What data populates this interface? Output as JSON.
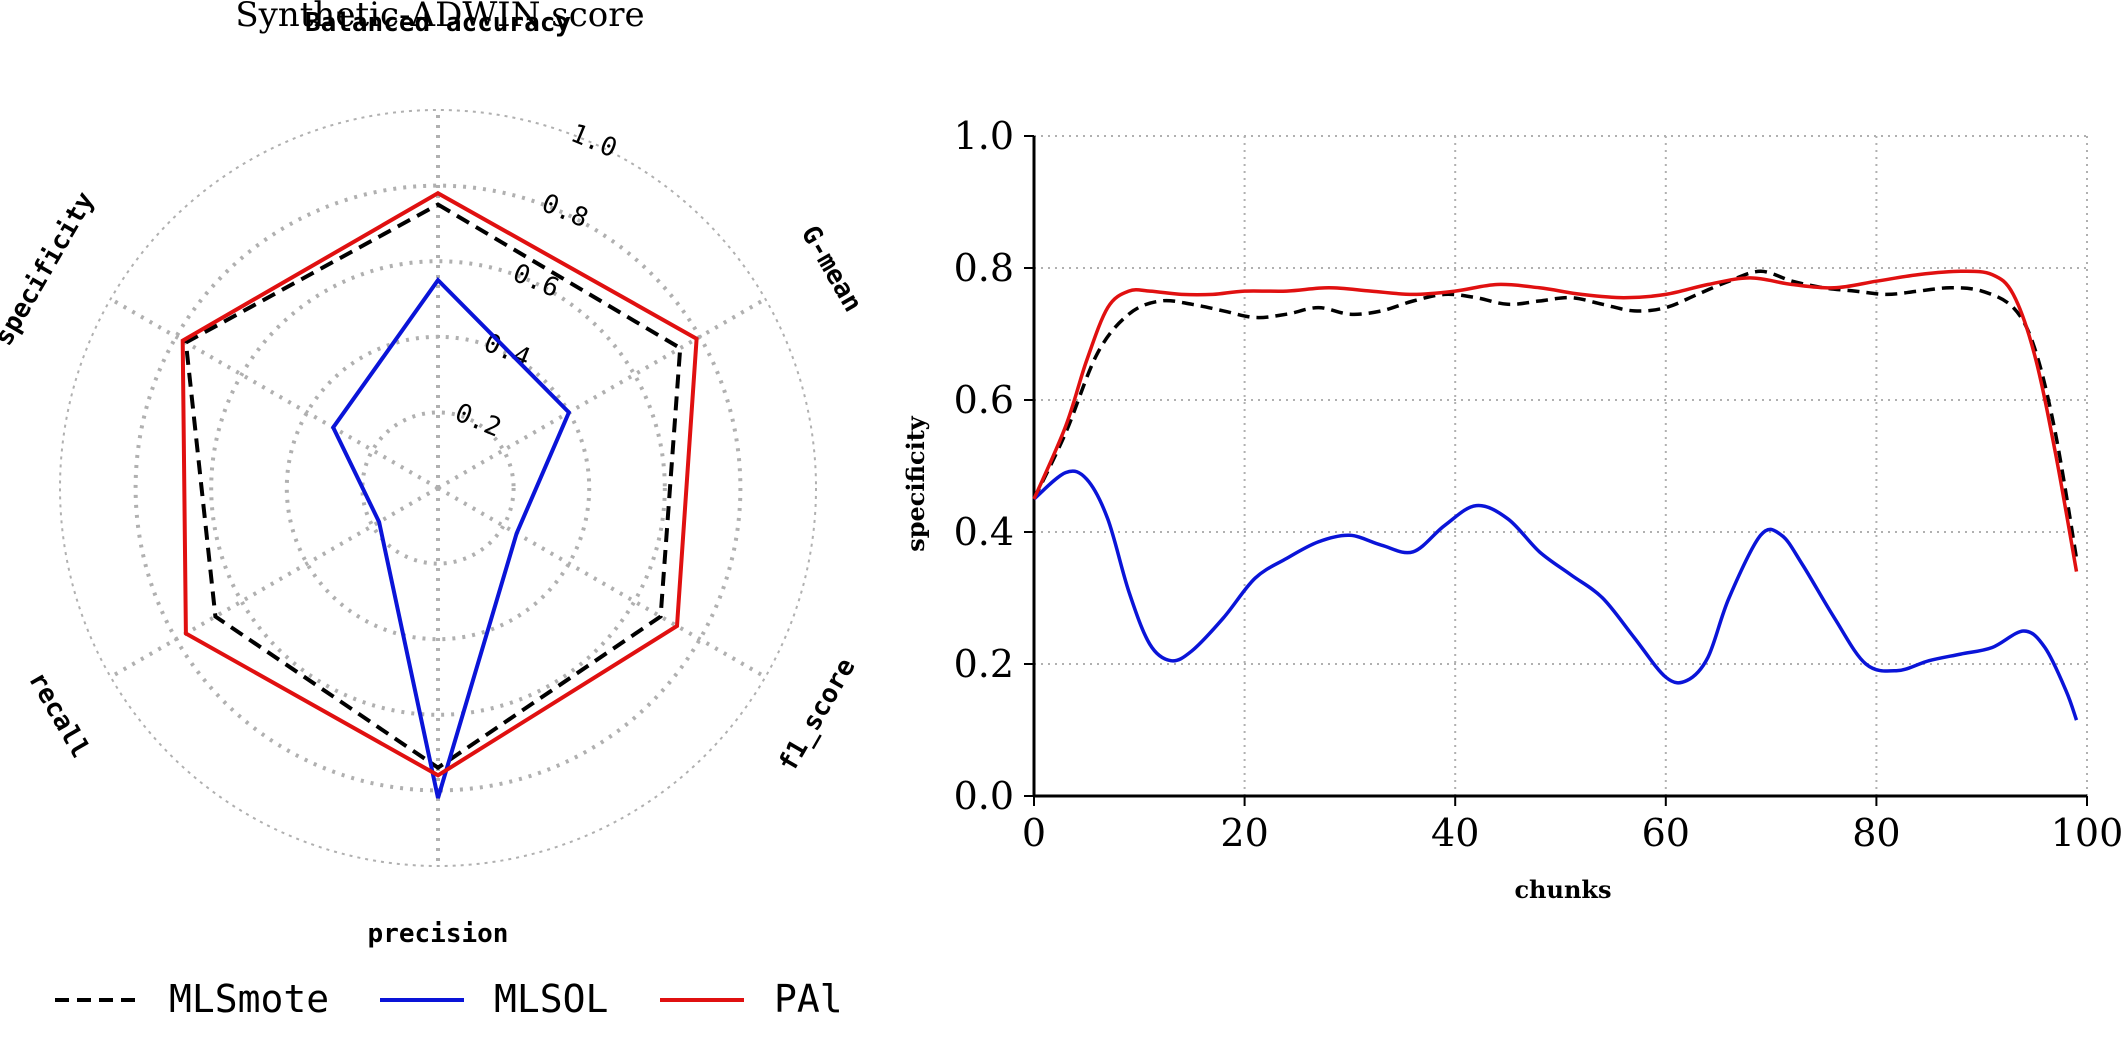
{
  "colors": {
    "mlsmote": "#000000",
    "mlsol": "#0a14d8",
    "pal": "#e01010",
    "grid": "#b0b0b0"
  },
  "legend": [
    {
      "name": "MLSmote",
      "color": "#000000",
      "dash": true
    },
    {
      "name": "MLSOL",
      "color": "#0a14d8",
      "dash": false
    },
    {
      "name": "PAl",
      "color": "#e01010",
      "dash": false
    }
  ],
  "chart_data": [
    {
      "type": "radar",
      "title": "Synthetic-ADWIN score",
      "axes": [
        "Balanced accuracy",
        "G-mean",
        "f1_score",
        "precision",
        "recall",
        "specificity"
      ],
      "rlim": [
        0,
        1.0
      ],
      "rticks": [
        "0.2",
        "0.4",
        "0.6",
        "0.8",
        "1.0"
      ],
      "rtick_values": [
        0.2,
        0.4,
        0.6,
        0.8,
        1.0
      ],
      "series": [
        {
          "name": "MLSmote",
          "values": [
            0.75,
            0.74,
            0.68,
            0.74,
            0.68,
            0.77
          ]
        },
        {
          "name": "MLSOL",
          "values": [
            0.55,
            0.4,
            0.24,
            0.82,
            0.18,
            0.32
          ]
        },
        {
          "name": "PAl",
          "values": [
            0.78,
            0.79,
            0.73,
            0.76,
            0.77,
            0.78
          ]
        }
      ]
    },
    {
      "type": "line",
      "xlabel": "chunks",
      "ylabel": "specificity",
      "xlim": [
        0,
        100
      ],
      "ylim": [
        0,
        1.0
      ],
      "xticks": [
        "0",
        "20",
        "40",
        "60",
        "80",
        "100"
      ],
      "yticks": [
        "0.0",
        "0.2",
        "0.4",
        "0.6",
        "0.8",
        "1.0"
      ],
      "grid": true,
      "series": [
        {
          "name": "MLSmote",
          "x": [
            0,
            3,
            6,
            9,
            12,
            15,
            18,
            21,
            24,
            27,
            30,
            33,
            36,
            39,
            42,
            45,
            48,
            51,
            54,
            57,
            60,
            63,
            66,
            69,
            72,
            75,
            78,
            81,
            84,
            87,
            90,
            93,
            95,
            97,
            99
          ],
          "y": [
            0.45,
            0.55,
            0.67,
            0.73,
            0.75,
            0.745,
            0.735,
            0.725,
            0.73,
            0.74,
            0.73,
            0.735,
            0.75,
            0.76,
            0.755,
            0.745,
            0.75,
            0.755,
            0.745,
            0.735,
            0.74,
            0.76,
            0.78,
            0.795,
            0.78,
            0.77,
            0.765,
            0.76,
            0.765,
            0.77,
            0.765,
            0.74,
            0.68,
            0.55,
            0.36
          ]
        },
        {
          "name": "MLSOL",
          "x": [
            0,
            3,
            5,
            7,
            9,
            11,
            13,
            15,
            18,
            21,
            24,
            27,
            30,
            33,
            36,
            39,
            42,
            45,
            48,
            51,
            54,
            57,
            60,
            62,
            64,
            66,
            69,
            71,
            73,
            76,
            79,
            82,
            85,
            88,
            91,
            94,
            96,
            98,
            99
          ],
          "y": [
            0.45,
            0.49,
            0.48,
            0.42,
            0.31,
            0.23,
            0.205,
            0.22,
            0.27,
            0.33,
            0.36,
            0.385,
            0.395,
            0.38,
            0.37,
            0.41,
            0.44,
            0.42,
            0.37,
            0.335,
            0.3,
            0.24,
            0.18,
            0.175,
            0.21,
            0.3,
            0.395,
            0.395,
            0.35,
            0.27,
            0.2,
            0.19,
            0.205,
            0.215,
            0.225,
            0.25,
            0.225,
            0.16,
            0.115
          ]
        },
        {
          "name": "PAl",
          "x": [
            0,
            3,
            5,
            7,
            9,
            11,
            14,
            17,
            20,
            24,
            28,
            32,
            36,
            40,
            44,
            48,
            52,
            56,
            60,
            64,
            68,
            72,
            76,
            80,
            84,
            88,
            91,
            93,
            95,
            97,
            99
          ],
          "y": [
            0.45,
            0.56,
            0.66,
            0.74,
            0.765,
            0.765,
            0.76,
            0.76,
            0.765,
            0.765,
            0.77,
            0.765,
            0.76,
            0.765,
            0.775,
            0.77,
            0.76,
            0.755,
            0.76,
            0.775,
            0.785,
            0.775,
            0.77,
            0.78,
            0.79,
            0.795,
            0.79,
            0.76,
            0.67,
            0.52,
            0.34
          ]
        }
      ]
    }
  ]
}
